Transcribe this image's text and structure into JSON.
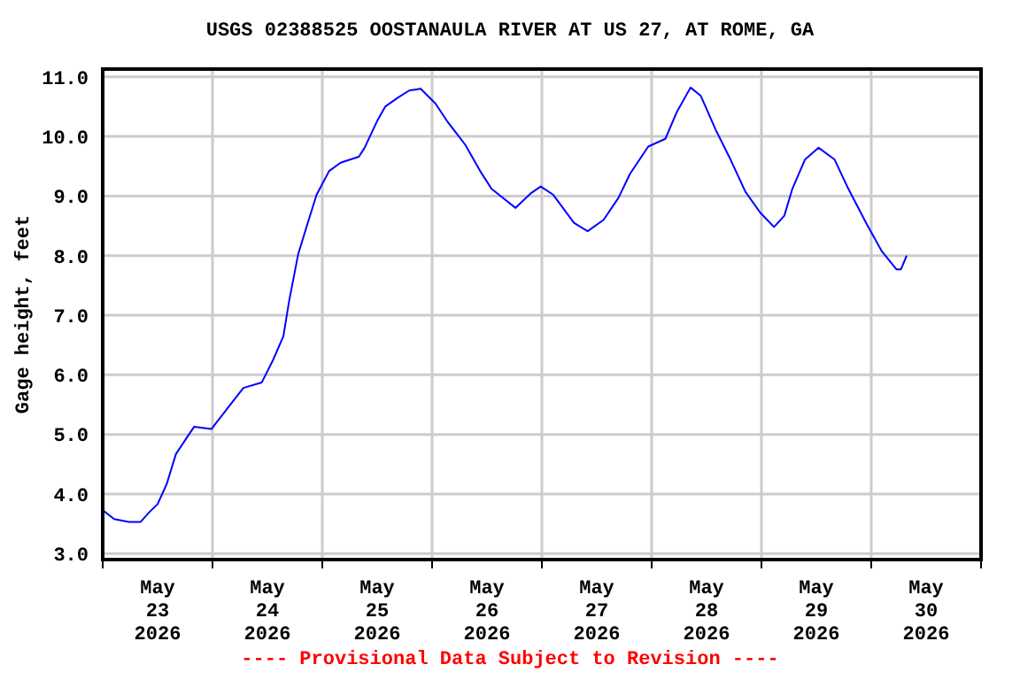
{
  "chart_data": {
    "type": "line",
    "title": "USGS 02388525 OOSTANAULA RIVER AT US 27, AT ROME, GA",
    "ylabel": "Gage height, feet",
    "annotations": [
      "---- Provisional Data Subject to Revision ----"
    ],
    "x": [
      "2026-05-23T00:00",
      "2026-05-23T02:30",
      "2026-05-23T05:45",
      "2026-05-23T08:15",
      "2026-05-23T10:15",
      "2026-05-23T12:00",
      "2026-05-23T14:00",
      "2026-05-23T16:00",
      "2026-05-23T18:30",
      "2026-05-23T20:00",
      "2026-05-23T23:45",
      "2026-05-24T03:30",
      "2026-05-24T06:45",
      "2026-05-24T10:45",
      "2026-05-24T13:15",
      "2026-05-24T15:30",
      "2026-05-24T16:45",
      "2026-05-24T18:45",
      "2026-05-24T20:45",
      "2026-05-24T22:45",
      "2026-05-25T01:30",
      "2026-05-25T04:00",
      "2026-05-25T08:00",
      "2026-05-25T09:15",
      "2026-05-25T12:00",
      "2026-05-25T13:45",
      "2026-05-25T16:30",
      "2026-05-25T19:00",
      "2026-05-25T21:30",
      "2026-05-26T00:45",
      "2026-05-26T03:15",
      "2026-05-26T07:15",
      "2026-05-26T10:30",
      "2026-05-26T13:00",
      "2026-05-26T18:15",
      "2026-05-26T21:30",
      "2026-05-26T23:45",
      "2026-05-27T02:30",
      "2026-05-27T07:00",
      "2026-05-27T10:00",
      "2026-05-27T13:30",
      "2026-05-27T16:45",
      "2026-05-27T19:15",
      "2026-05-27T23:15",
      "2026-05-28T03:00",
      "2026-05-28T05:30",
      "2026-05-28T08:30",
      "2026-05-28T10:45",
      "2026-05-28T14:00",
      "2026-05-28T17:15",
      "2026-05-28T20:30",
      "2026-05-28T23:45",
      "2026-05-29T02:45",
      "2026-05-29T05:00",
      "2026-05-29T06:45",
      "2026-05-29T09:30",
      "2026-05-29T12:30",
      "2026-05-29T16:00",
      "2026-05-29T19:00",
      "2026-05-29T23:00",
      "2026-05-30T02:15",
      "2026-05-30T05:30",
      "2026-05-30T06:30",
      "2026-05-30T07:45"
    ],
    "series": [
      {
        "color": "#0000ff",
        "values": [
          3.73,
          3.58,
          3.53,
          3.53,
          3.7,
          3.83,
          4.17,
          4.67,
          4.96,
          5.13,
          5.09,
          5.46,
          5.78,
          5.87,
          6.25,
          6.65,
          7.24,
          8.03,
          8.53,
          9.02,
          9.42,
          9.56,
          9.66,
          9.81,
          10.26,
          10.5,
          10.65,
          10.77,
          10.8,
          10.55,
          10.26,
          9.86,
          9.42,
          9.12,
          8.8,
          9.04,
          9.16,
          9.02,
          8.55,
          8.41,
          8.6,
          8.97,
          9.37,
          9.83,
          9.96,
          10.41,
          10.82,
          10.68,
          10.11,
          9.61,
          9.07,
          8.72,
          8.48,
          8.67,
          9.12,
          9.61,
          9.81,
          9.61,
          9.12,
          8.53,
          8.08,
          7.77,
          7.77,
          8.0
        ]
      }
    ],
    "xlim": [
      "2026-05-23T00:00",
      "2026-05-31T00:00"
    ],
    "xticks": [
      {
        "value": "2026-05-23T00:00",
        "label": null
      },
      {
        "value": "2026-05-23T12:00",
        "label": "May 23 2026"
      },
      {
        "value": "2026-05-24T00:00",
        "label": null
      },
      {
        "value": "2026-05-24T12:00",
        "label": "May 24 2026"
      },
      {
        "value": "2026-05-25T00:00",
        "label": null
      },
      {
        "value": "2026-05-25T12:00",
        "label": "May 25 2026"
      },
      {
        "value": "2026-05-26T00:00",
        "label": null
      },
      {
        "value": "2026-05-26T12:00",
        "label": "May 26 2026"
      },
      {
        "value": "2026-05-27T00:00",
        "label": null
      },
      {
        "value": "2026-05-27T12:00",
        "label": "May 27 2026"
      },
      {
        "value": "2026-05-28T00:00",
        "label": null
      },
      {
        "value": "2026-05-28T12:00",
        "label": "May 28 2026"
      },
      {
        "value": "2026-05-29T00:00",
        "label": null
      },
      {
        "value": "2026-05-29T12:00",
        "label": "May 29 2026"
      },
      {
        "value": "2026-05-30T00:00",
        "label": null
      },
      {
        "value": "2026-05-30T12:00",
        "label": "May 30 2026"
      },
      {
        "value": "2026-05-31T00:00",
        "label": null
      }
    ],
    "ylim": [
      2.9,
      11.13
    ],
    "yticks": [
      {
        "value": 3,
        "label": "3.0"
      },
      {
        "value": 4,
        "label": "4.0"
      },
      {
        "value": 5,
        "label": "5.0"
      },
      {
        "value": 6,
        "label": "6.0"
      },
      {
        "value": 7,
        "label": "7.0"
      },
      {
        "value": 8,
        "label": "8.0"
      },
      {
        "value": 9,
        "label": "9.0"
      },
      {
        "value": 10,
        "label": "10.0"
      },
      {
        "value": 11,
        "label": "11.0"
      }
    ],
    "grid": true,
    "legend": false,
    "marker": "none",
    "line_style": "solid"
  }
}
